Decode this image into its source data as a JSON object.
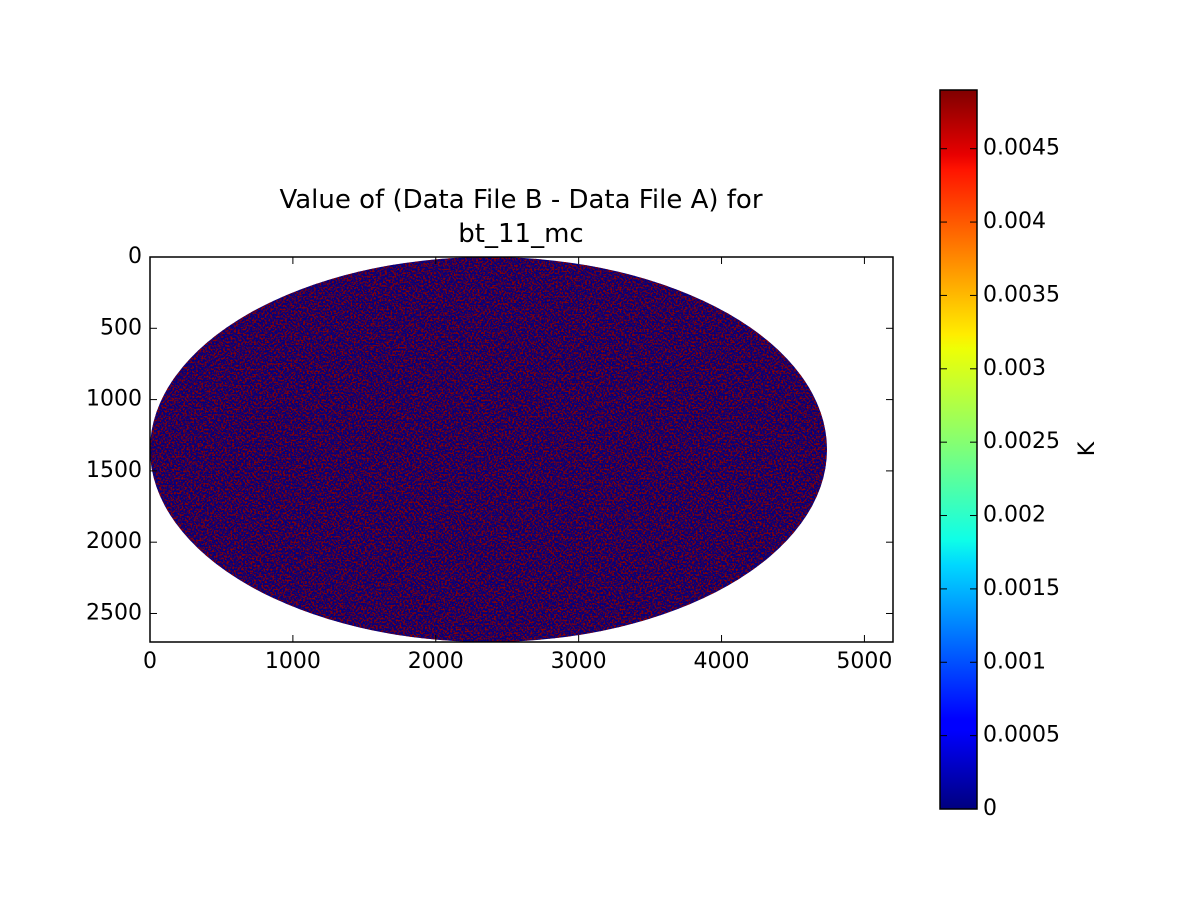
{
  "chart_data": {
    "type": "image",
    "title": "Value of (Data File B - Data File A) for bt_11_mc",
    "xlim": [
      0,
      5200
    ],
    "xticks": [
      0,
      1000,
      2000,
      3000,
      4000,
      5000
    ],
    "ylim": [
      2700,
      0
    ],
    "yticks": [
      0,
      500,
      1000,
      1500,
      2000,
      2500
    ],
    "colormap": "jet",
    "colorbar": {
      "label": "K",
      "clim": [
        0,
        0.0049
      ],
      "ticks": [
        0,
        0.0005,
        0.001,
        0.0015,
        0.002,
        0.0025,
        0.003,
        0.0035,
        0.004,
        0.0045
      ]
    }
  }
}
